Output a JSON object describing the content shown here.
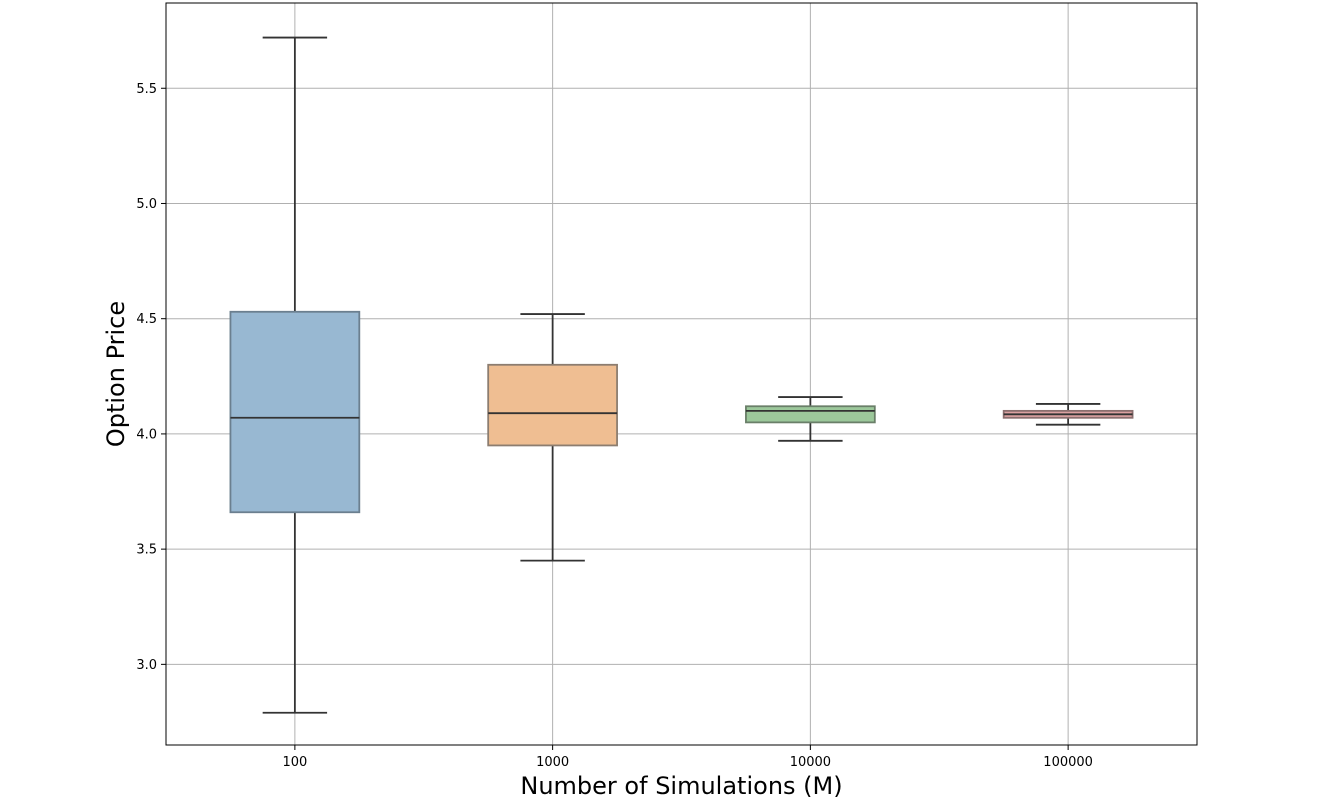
{
  "chart_data": {
    "type": "box",
    "title": "",
    "xlabel": "Number of Simulations (M)",
    "ylabel": "Option Price",
    "categories": [
      "100",
      "1000",
      "10000",
      "100000"
    ],
    "boxes": [
      {
        "category": "100",
        "whisker_low": 2.79,
        "q1": 3.66,
        "median": 4.07,
        "q3": 4.53,
        "whisker_high": 5.72,
        "color": "#98b8d2",
        "edge": "#6b7f8f"
      },
      {
        "category": "1000",
        "whisker_low": 3.45,
        "q1": 3.95,
        "median": 4.09,
        "q3": 4.3,
        "whisker_high": 4.52,
        "color": "#efbe92",
        "edge": "#8c7d70"
      },
      {
        "category": "10000",
        "whisker_low": 3.97,
        "q1": 4.05,
        "median": 4.1,
        "q3": 4.12,
        "whisker_high": 4.16,
        "color": "#9cc89b",
        "edge": "#6a7f69"
      },
      {
        "category": "100000",
        "whisker_low": 4.04,
        "q1": 4.07,
        "median": 4.085,
        "q3": 4.1,
        "whisker_high": 4.13,
        "color": "#dca1a1",
        "edge": "#8b6f6f"
      }
    ],
    "yticks": [
      3.0,
      3.5,
      4.0,
      4.5,
      5.0,
      5.5
    ],
    "ytick_labels": [
      "3.0",
      "3.5",
      "4.0",
      "4.5",
      "5.0",
      "5.5"
    ],
    "ylim": [
      2.65,
      5.87
    ],
    "grid": true,
    "legend": "none"
  }
}
